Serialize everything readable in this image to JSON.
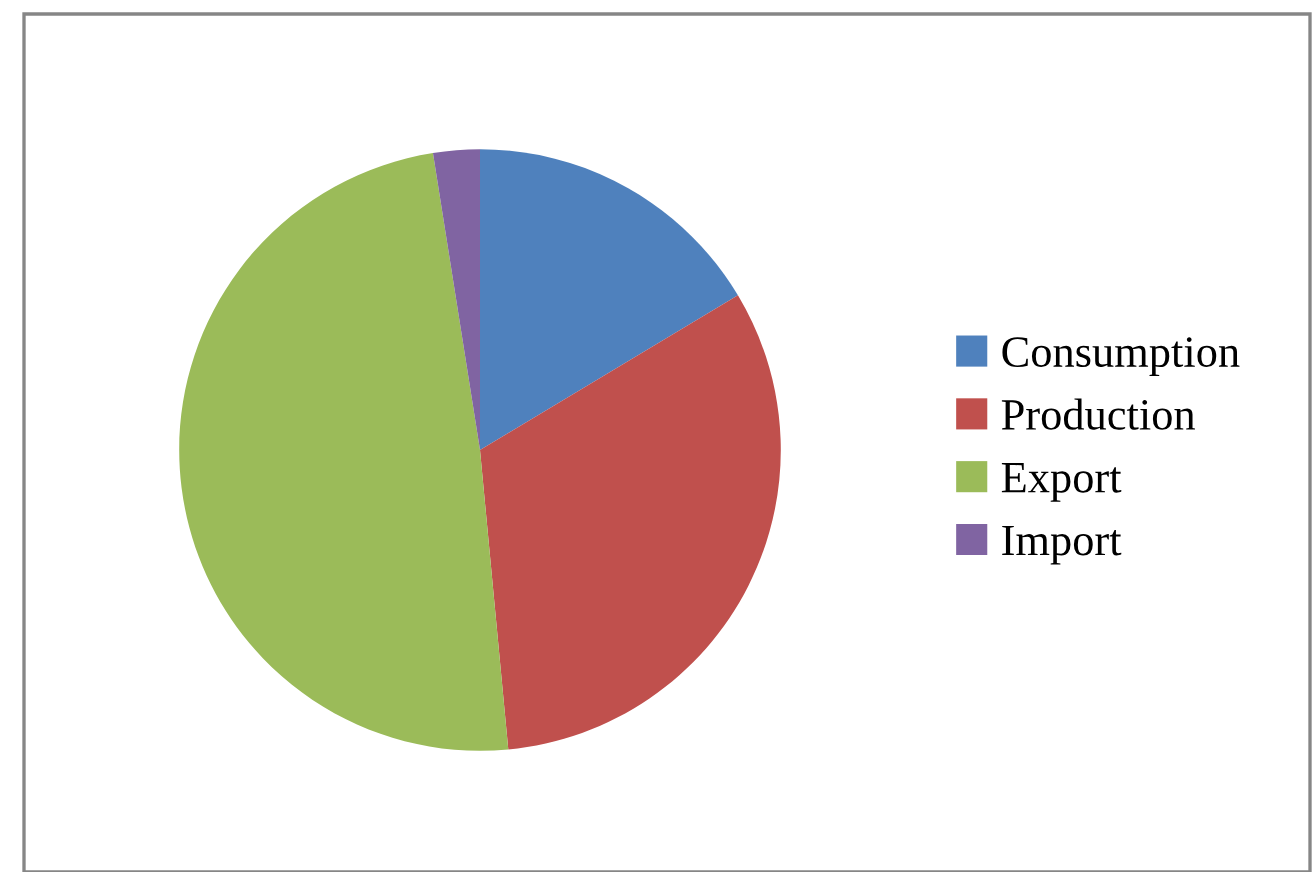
{
  "chart_data": {
    "type": "pie",
    "categories": [
      "Consumption",
      "Production",
      "Export",
      "Import"
    ],
    "values": [
      16.4,
      32.1,
      49.0,
      2.5
    ],
    "colors": [
      "#4f81bd",
      "#c0504d",
      "#9bbb59",
      "#8064a2"
    ],
    "legend": "right"
  }
}
